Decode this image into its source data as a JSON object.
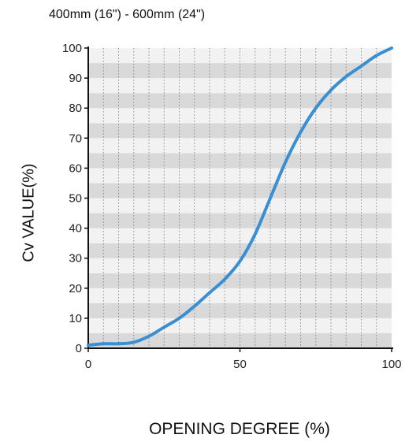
{
  "chart_data": {
    "type": "line",
    "title": "400mm (16\") - 600mm (24\")",
    "xlabel": "OPENING DEGREE (%)",
    "ylabel": "Cv VALUE(%)",
    "xlim": [
      0,
      100
    ],
    "ylim": [
      0,
      100
    ],
    "x_ticks": [
      0,
      50,
      100
    ],
    "y_ticks": [
      0,
      10,
      20,
      30,
      40,
      50,
      60,
      70,
      80,
      90,
      100
    ],
    "grid": "horizontal gray bands and dotted vertical lines every 5%",
    "series": [
      {
        "x": [
          0,
          5,
          10,
          15,
          20,
          25,
          30,
          35,
          40,
          45,
          50,
          55,
          60,
          65,
          70,
          75,
          80,
          85,
          90,
          95,
          100
        ],
        "values": [
          1,
          1.5,
          1.5,
          2,
          4,
          7,
          10,
          14,
          18.5,
          23,
          29,
          38,
          50,
          62,
          72,
          80,
          86,
          90.5,
          94,
          97.5,
          100
        ],
        "color": "#3a8fd1"
      }
    ],
    "band_colors": [
      "#d9d9d9",
      "#f2f2f2"
    ]
  }
}
